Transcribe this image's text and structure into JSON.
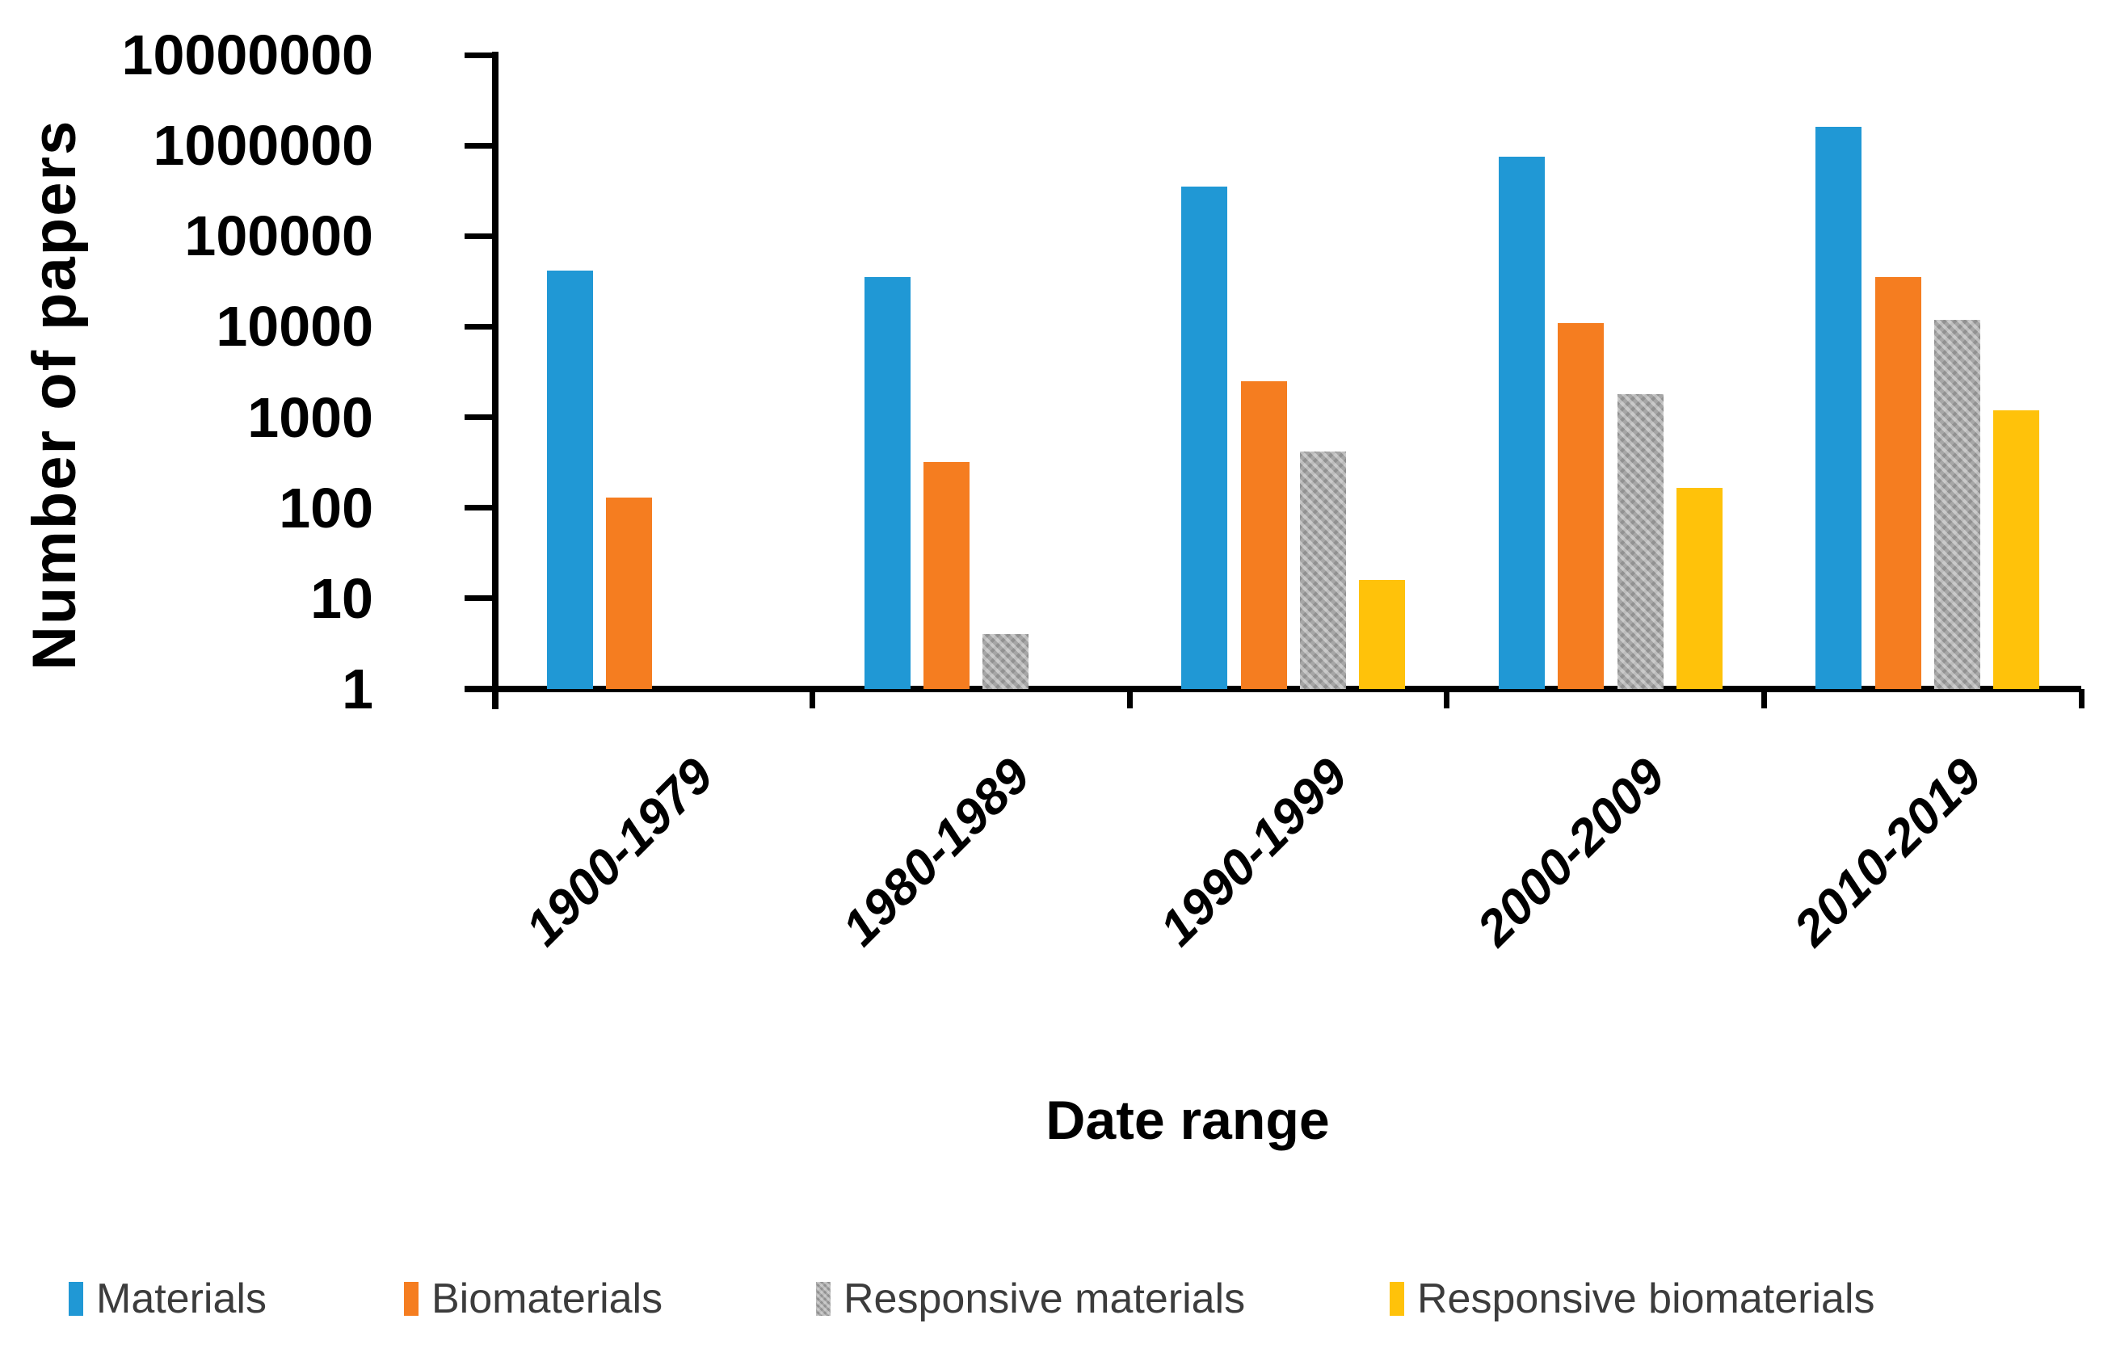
{
  "chart_data": {
    "type": "bar",
    "title": "",
    "xlabel": "Date range",
    "ylabel": "Number of papers",
    "y_scale": "log10",
    "ylim": [
      1,
      10000000
    ],
    "y_ticks": [
      1,
      10,
      100,
      1000,
      10000,
      100000,
      1000000,
      10000000
    ],
    "y_tick_labels": [
      "1",
      "10",
      "100",
      "1000",
      "10000",
      "100000",
      "1000000",
      "10000000"
    ],
    "grid": false,
    "legend_position": "bottom",
    "categories": [
      "1900-1979",
      "1980-1989",
      "1990-1999",
      "2000-2009",
      "2010-2019"
    ],
    "series": [
      {
        "name": "Materials",
        "color": "#2098D5",
        "pattern": false,
        "values": [
          42000,
          35000,
          350000,
          750000,
          1600000
        ]
      },
      {
        "name": "Biomaterials",
        "color": "#F57D20",
        "pattern": false,
        "values": [
          130,
          320,
          2500,
          11000,
          35000
        ]
      },
      {
        "name": "Responsive materials",
        "color": "#A6A6A6",
        "pattern": true,
        "values": [
          0,
          4,
          420,
          1800,
          12000
        ]
      },
      {
        "name": "Responsive biomaterials",
        "color": "#FFC20A",
        "pattern": false,
        "values": [
          0,
          0,
          16,
          165,
          1200
        ]
      }
    ]
  },
  "y_axis": {
    "title": "Number of papers"
  },
  "x_axis": {
    "title": "Date range"
  },
  "legend": {
    "items": [
      {
        "label": "Materials",
        "color": "#2098D5",
        "pattern": false
      },
      {
        "label": "Biomaterials",
        "color": "#F57D20",
        "pattern": false
      },
      {
        "label": "Responsive materials",
        "color": "#A6A6A6",
        "pattern": true
      },
      {
        "label": "Responsive biomaterials",
        "color": "#FFC20A",
        "pattern": false
      }
    ]
  }
}
